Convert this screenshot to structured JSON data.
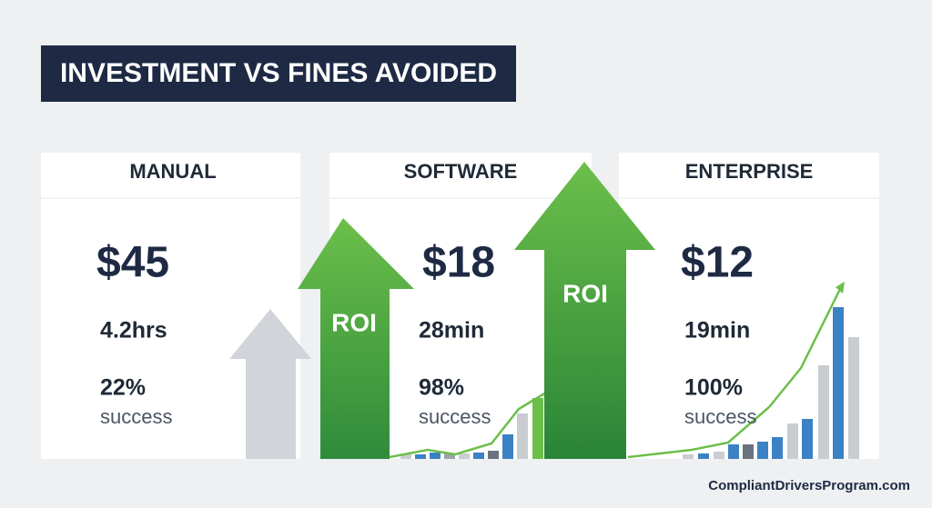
{
  "header": {
    "title": "INVESTMENT VS FINES AVOIDED"
  },
  "cards": [
    {
      "name": "MANUAL",
      "cost": "$45",
      "time": "4.2hrs",
      "rate": "22%",
      "rate_label": "success"
    },
    {
      "name": "SOFTWARE",
      "cost": "$18",
      "time": "28min",
      "rate": "98%",
      "rate_label": "success"
    },
    {
      "name": "ENTERPRISE",
      "cost": "$12",
      "time": "19min",
      "rate": "100%",
      "rate_label": "success"
    }
  ],
  "arrows": [
    {
      "label": "ROI"
    },
    {
      "label": "ROI"
    }
  ],
  "footer": {
    "url": "CompliantDriversProgram.com"
  }
}
